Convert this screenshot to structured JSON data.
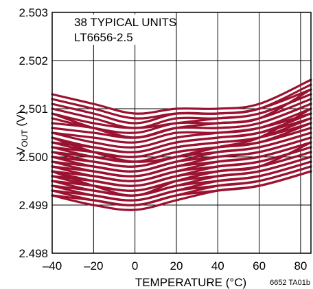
{
  "chart_data": {
    "type": "line",
    "annotations": [
      "38 TYPICAL UNITS",
      "LT6656-2.5"
    ],
    "xlabel": "TEMPERATURE (°C)",
    "ylabel": {
      "main": "V",
      "sub": "OUT",
      "unit": " (V)"
    },
    "figure_code": "6652 TA01b",
    "xlim": [
      -40,
      85
    ],
    "ylim": [
      2.498,
      2.503
    ],
    "x_ticks": [
      -40,
      -20,
      0,
      20,
      40,
      60,
      80
    ],
    "x_tick_labels": [
      "–40",
      "–20",
      "0",
      "20",
      "40",
      "60",
      "80"
    ],
    "y_ticks": [
      2.498,
      2.499,
      2.5,
      2.501,
      2.502,
      2.503
    ],
    "y_tick_labels": [
      "2.498",
      "2.499",
      "2.500",
      "2.501",
      "2.502",
      "2.503"
    ],
    "grid": true,
    "line_color": "#9b1230",
    "x": [
      -40,
      -20,
      0,
      20,
      40,
      60,
      85
    ],
    "series": [
      {
        "values": [
          2.5013,
          2.5011,
          2.5009,
          2.501,
          2.501,
          2.5011,
          2.5016
        ]
      },
      {
        "values": [
          2.5012,
          2.501,
          2.5008,
          2.5009,
          2.5009,
          2.501,
          2.5015
        ]
      },
      {
        "values": [
          2.5011,
          2.5009,
          2.5007,
          2.5009,
          2.5009,
          2.501,
          2.5014
        ]
      },
      {
        "values": [
          2.501,
          2.5008,
          2.5006,
          2.5008,
          2.5008,
          2.5009,
          2.5013
        ]
      },
      {
        "values": [
          2.5009,
          2.5007,
          2.5006,
          2.5007,
          2.5008,
          2.5009,
          2.5013
        ]
      },
      {
        "values": [
          2.5008,
          2.5006,
          2.5005,
          2.5007,
          2.5007,
          2.5008,
          2.5012
        ]
      },
      {
        "values": [
          2.5007,
          2.5006,
          2.5004,
          2.5006,
          2.5006,
          2.5007,
          2.5011
        ]
      },
      {
        "values": [
          2.5006,
          2.5005,
          2.5004,
          2.5006,
          2.5006,
          2.5007,
          2.5011
        ]
      },
      {
        "values": [
          2.5005,
          2.5004,
          2.5003,
          2.5005,
          2.5005,
          2.5006,
          2.501
        ]
      },
      {
        "values": [
          2.5005,
          2.5003,
          2.5002,
          2.5004,
          2.5005,
          2.5006,
          2.5009
        ]
      },
      {
        "values": [
          2.5004,
          2.5002,
          2.5001,
          2.5003,
          2.5004,
          2.5005,
          2.5009
        ]
      },
      {
        "values": [
          2.5003,
          2.5002,
          2.5001,
          2.5003,
          2.5004,
          2.5005,
          2.5008
        ]
      },
      {
        "values": [
          2.5003,
          2.5001,
          2.5,
          2.5002,
          2.5003,
          2.5004,
          2.5008
        ]
      },
      {
        "values": [
          2.5002,
          2.5001,
          2.5,
          2.5002,
          2.5003,
          2.5004,
          2.5007
        ]
      },
      {
        "values": [
          2.5002,
          2.5,
          2.4999,
          2.5001,
          2.5002,
          2.5003,
          2.5007
        ]
      },
      {
        "values": [
          2.5001,
          2.5,
          2.4999,
          2.5001,
          2.5002,
          2.5003,
          2.5006
        ]
      },
      {
        "values": [
          2.5001,
          2.4999,
          2.4998,
          2.5,
          2.5002,
          2.5003,
          2.5006
        ]
      },
      {
        "values": [
          2.5,
          2.4999,
          2.4998,
          2.5,
          2.5001,
          2.5002,
          2.5005
        ]
      },
      {
        "values": [
          2.5,
          2.4998,
          2.4997,
          2.4999,
          2.5001,
          2.5002,
          2.5005
        ]
      },
      {
        "values": [
          2.4999,
          2.4998,
          2.4997,
          2.4999,
          2.5,
          2.5001,
          2.5004
        ]
      },
      {
        "values": [
          2.4999,
          2.4997,
          2.4996,
          2.4998,
          2.5,
          2.5001,
          2.5004
        ]
      },
      {
        "values": [
          2.4998,
          2.4997,
          2.4996,
          2.4998,
          2.4999,
          2.5,
          2.5003
        ]
      },
      {
        "values": [
          2.4998,
          2.4996,
          2.4995,
          2.4997,
          2.4999,
          2.5,
          2.5003
        ]
      },
      {
        "values": [
          2.4997,
          2.4996,
          2.4995,
          2.4997,
          2.4998,
          2.4999,
          2.5002
        ]
      },
      {
        "values": [
          2.4997,
          2.4995,
          2.4994,
          2.4996,
          2.4998,
          2.4999,
          2.5002
        ]
      },
      {
        "values": [
          2.4996,
          2.4995,
          2.4994,
          2.4996,
          2.4997,
          2.4998,
          2.5001
        ]
      },
      {
        "values": [
          2.4996,
          2.4994,
          2.4993,
          2.4995,
          2.4997,
          2.4998,
          2.5001
        ]
      },
      {
        "values": [
          2.4995,
          2.4994,
          2.4993,
          2.4995,
          2.4996,
          2.4997,
          2.5
        ]
      },
      {
        "values": [
          2.4995,
          2.4993,
          2.4992,
          2.4994,
          2.4996,
          2.4997,
          2.5
        ]
      },
      {
        "values": [
          2.4994,
          2.4993,
          2.4992,
          2.4994,
          2.4995,
          2.4996,
          2.4999
        ]
      },
      {
        "values": [
          2.4994,
          2.4992,
          2.4991,
          2.4993,
          2.4995,
          2.4996,
          2.4999
        ]
      },
      {
        "values": [
          2.4993,
          2.4992,
          2.4991,
          2.4993,
          2.4994,
          2.4995,
          2.4998
        ]
      },
      {
        "values": [
          2.4993,
          2.4991,
          2.499,
          2.4992,
          2.4994,
          2.4995,
          2.4998
        ]
      },
      {
        "values": [
          2.4992,
          2.4991,
          2.499,
          2.4992,
          2.4993,
          2.4994,
          2.4997
        ]
      },
      {
        "values": [
          2.4992,
          2.499,
          2.4989,
          2.4991,
          2.4993,
          2.4994,
          2.4997
        ]
      },
      {
        "values": [
          2.5004,
          2.5001,
          2.4999,
          2.5,
          2.5002,
          2.5004,
          2.501
        ]
      },
      {
        "values": [
          2.4997,
          2.4994,
          2.4992,
          2.4995,
          2.4997,
          2.4998,
          2.5003
        ]
      },
      {
        "values": [
          2.5009,
          2.5006,
          2.5004,
          2.5006,
          2.5007,
          2.5008,
          2.5014
        ]
      }
    ]
  }
}
